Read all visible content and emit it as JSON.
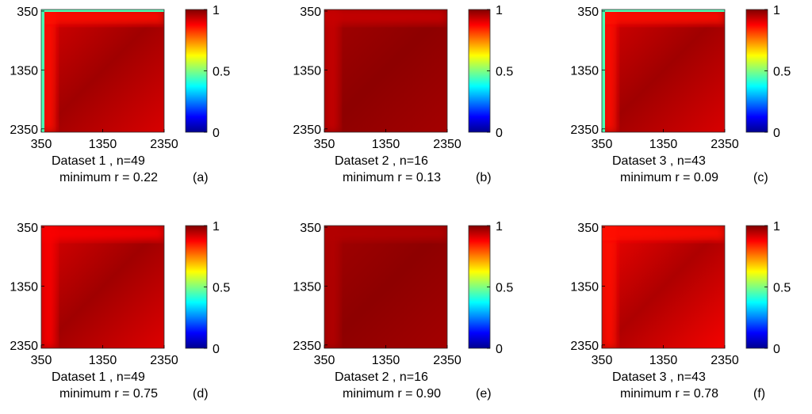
{
  "colormap": [
    "#00008f",
    "#0000ff",
    "#0080ff",
    "#00ffff",
    "#80ff80",
    "#ffff00",
    "#ff8000",
    "#ff0000",
    "#800000"
  ],
  "chart_data": [
    {
      "type": "heatmap",
      "panel_label": "(a)",
      "caption_dataset": "Dataset  1 , n=49",
      "caption_minimum": "minimum r = 0.22",
      "x_ticks": [
        "350",
        "1350",
        "2350"
      ],
      "y_ticks": [
        "350",
        "1350",
        "2350"
      ],
      "colorbar_ticks": [
        "1",
        "0.5",
        "0"
      ],
      "value_range": [
        0,
        1
      ],
      "minimum_r": 0.22,
      "edge_strip": true,
      "edge_value": 0.45,
      "base_value": 0.93,
      "diag_value": 1.0,
      "offdiag_value": 0.9,
      "edge_zone_value": 0.86
    },
    {
      "type": "heatmap",
      "panel_label": "(b)",
      "caption_dataset": "Dataset   2 , n=16",
      "caption_minimum": "minimum r = 0.13",
      "x_ticks": [
        "350",
        "1350",
        "2350"
      ],
      "y_ticks": [
        "350",
        "1350",
        "2350"
      ],
      "colorbar_ticks": [
        "1",
        "0.5",
        "0"
      ],
      "value_range": [
        0,
        1
      ],
      "minimum_r": 0.13,
      "edge_strip": false,
      "edge_value": 0.92,
      "base_value": 0.97,
      "diag_value": 1.0,
      "offdiag_value": 0.96,
      "edge_zone_value": 0.93
    },
    {
      "type": "heatmap",
      "panel_label": "(c)",
      "caption_dataset": "Dataset   3 , n=43",
      "caption_minimum": "minimum r = 0.09",
      "x_ticks": [
        "350",
        "1350",
        "2350"
      ],
      "y_ticks": [
        "350",
        "1350",
        "2350"
      ],
      "colorbar_ticks": [
        "1",
        "0.5",
        "0"
      ],
      "value_range": [
        0,
        1
      ],
      "minimum_r": 0.09,
      "edge_strip": true,
      "edge_value": 0.45,
      "base_value": 0.93,
      "diag_value": 1.0,
      "offdiag_value": 0.9,
      "edge_zone_value": 0.86
    },
    {
      "type": "heatmap",
      "panel_label": "(d)",
      "caption_dataset": "Dataset  1 , n=49",
      "caption_minimum": "minimum r = 0.75",
      "x_ticks": [
        "350",
        "1350",
        "2350"
      ],
      "y_ticks": [
        "350",
        "1350",
        "2350"
      ],
      "colorbar_ticks": [
        "1",
        "0.5",
        "0"
      ],
      "value_range": [
        0,
        1
      ],
      "minimum_r": 0.75,
      "edge_strip": false,
      "edge_value": 0.9,
      "base_value": 0.93,
      "diag_value": 1.0,
      "offdiag_value": 0.89,
      "edge_zone_value": 0.88
    },
    {
      "type": "heatmap",
      "panel_label": "(e)",
      "caption_dataset": "Dataset   2 , n=16",
      "caption_minimum": "minimum r = 0.90",
      "x_ticks": [
        "350",
        "1350",
        "2350"
      ],
      "y_ticks": [
        "350",
        "1350",
        "2350"
      ],
      "colorbar_ticks": [
        "1",
        "0.5",
        "0"
      ],
      "value_range": [
        0,
        1
      ],
      "minimum_r": 0.9,
      "edge_strip": false,
      "edge_value": 0.95,
      "base_value": 0.97,
      "diag_value": 1.0,
      "offdiag_value": 0.96,
      "edge_zone_value": 0.95
    },
    {
      "type": "heatmap",
      "panel_label": "(f)",
      "caption_dataset": "Dataset   3 , n=43",
      "caption_minimum": "minimum r = 0.78",
      "x_ticks": [
        "350",
        "1350",
        "2350"
      ],
      "y_ticks": [
        "350",
        "1350",
        "2350"
      ],
      "colorbar_ticks": [
        "1",
        "0.5",
        "0"
      ],
      "value_range": [
        0,
        1
      ],
      "minimum_r": 0.78,
      "edge_strip": false,
      "edge_value": 0.88,
      "base_value": 0.9,
      "diag_value": 1.0,
      "offdiag_value": 0.87,
      "edge_zone_value": 0.86
    }
  ]
}
